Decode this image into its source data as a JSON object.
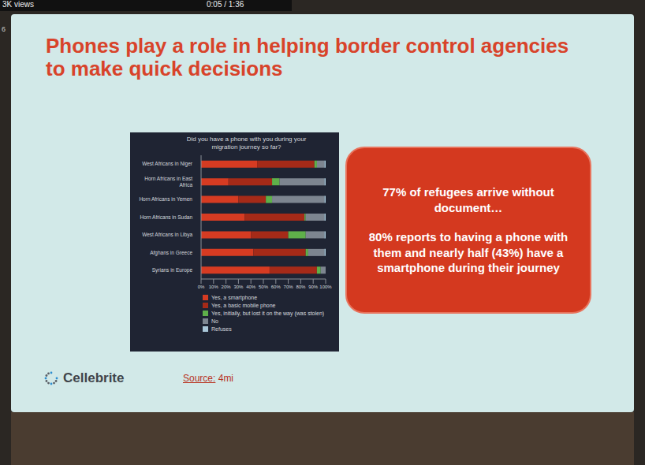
{
  "header": {
    "views": "3K views",
    "time": "0:05 / 1:36",
    "side_mark": "6"
  },
  "slide": {
    "title": "Phones play a role in helping border control agencies to make quick decisions",
    "callout": [
      "77% of refugees arrive without document…",
      "80% reports to having a phone with them and nearly half (43%) have a smartphone during their journey"
    ],
    "logo": "Cellebrite",
    "source_label": "Source:",
    "source": "4mi"
  },
  "chart_data": {
    "type": "bar",
    "title": "Did you have a phone with you during your migration journey so far?",
    "orientation": "horizontal",
    "stacked": true,
    "grid": false,
    "legend": "bottom",
    "categories": [
      "West Africans in Niger",
      "Horn Africans in East Africa",
      "Horn Africans in Yemen",
      "Horn Africans in Sudan",
      "West Africans in Libya",
      "Afghans in Greece",
      "Syrians in Europe"
    ],
    "series": [
      {
        "name": "Yes, a smartphone",
        "color": "#d63b22",
        "values": [
          45,
          22,
          30,
          35,
          40,
          42,
          55
        ]
      },
      {
        "name": "Yes, a basic mobile phone",
        "color": "#a52a18",
        "values": [
          46,
          35,
          22,
          48,
          30,
          42,
          38
        ]
      },
      {
        "name": "Yes, initially, but lost it on the way (was stolen)",
        "color": "#5fb04a",
        "values": [
          2,
          6,
          5,
          1,
          14,
          2,
          3
        ]
      },
      {
        "name": "No",
        "color": "#7d8590",
        "values": [
          6,
          36,
          42,
          15,
          15,
          13,
          4
        ]
      },
      {
        "name": "Refuses",
        "color": "#a9c6d8",
        "values": [
          1,
          1,
          1,
          1,
          1,
          1,
          0
        ]
      }
    ],
    "xlim": [
      0,
      100
    ],
    "xticks": [
      {
        "value": 0,
        "label": "0%"
      },
      {
        "value": 10,
        "label": "10%"
      },
      {
        "value": 20,
        "label": "20%"
      },
      {
        "value": 30,
        "label": "30%"
      },
      {
        "value": 40,
        "label": "40%"
      },
      {
        "value": 50,
        "label": "50%"
      },
      {
        "value": 60,
        "label": "60%"
      },
      {
        "value": 70,
        "label": "70%"
      },
      {
        "value": 80,
        "label": "80%"
      },
      {
        "value": 90,
        "label": "90%"
      },
      {
        "value": 100,
        "label": "100%"
      }
    ]
  }
}
